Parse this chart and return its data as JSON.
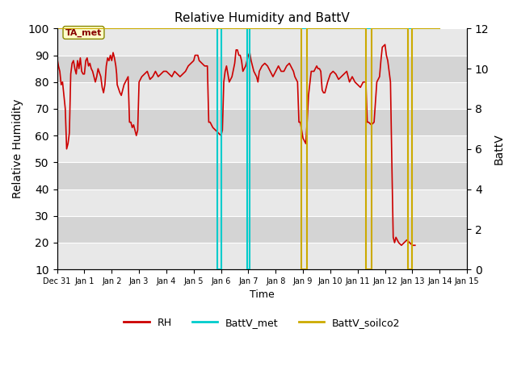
{
  "title": "Relative Humidity and BattV",
  "xlabel": "Time",
  "ylabel_left": "Relative Humidity",
  "ylabel_right": "BattV",
  "annotation_label": "TA_met",
  "ylim_left": [
    10,
    100
  ],
  "ylim_right": [
    0,
    12
  ],
  "background_color": "#ffffff",
  "rh_color": "#cc0000",
  "battv_met_color": "#00cccc",
  "battv_soilco2_color": "#ccaa00",
  "x_tick_labels": [
    "Dec 31",
    "Jan 1",
    "Jan 2",
    "Jan 3",
    "Jan 4",
    "Jan 5",
    "Jan 6",
    "Jan 7",
    "Jan 8",
    "Jan 9",
    "Jan 10",
    "Jan 11",
    "Jan 12",
    "Jan 13",
    "Jan 14",
    "Jan 15"
  ],
  "num_days": 16,
  "gray_bands": [
    {
      "ymin": 10,
      "ymax": 20,
      "color": "#e8e8e8"
    },
    {
      "ymin": 20,
      "ymax": 30,
      "color": "#d4d4d4"
    },
    {
      "ymin": 30,
      "ymax": 40,
      "color": "#e8e8e8"
    },
    {
      "ymin": 40,
      "ymax": 50,
      "color": "#d4d4d4"
    },
    {
      "ymin": 50,
      "ymax": 60,
      "color": "#e8e8e8"
    },
    {
      "ymin": 60,
      "ymax": 70,
      "color": "#d4d4d4"
    },
    {
      "ymin": 70,
      "ymax": 80,
      "color": "#e8e8e8"
    },
    {
      "ymin": 80,
      "ymax": 90,
      "color": "#d4d4d4"
    },
    {
      "ymin": 90,
      "ymax": 100,
      "color": "#e8e8e8"
    }
  ],
  "rh_data": [
    [
      0.0,
      89
    ],
    [
      0.05,
      86
    ],
    [
      0.1,
      84
    ],
    [
      0.15,
      79
    ],
    [
      0.2,
      80
    ],
    [
      0.25,
      75
    ],
    [
      0.3,
      70
    ],
    [
      0.35,
      55
    ],
    [
      0.4,
      57
    ],
    [
      0.45,
      61
    ],
    [
      0.5,
      83
    ],
    [
      0.55,
      87
    ],
    [
      0.6,
      88
    ],
    [
      0.65,
      85
    ],
    [
      0.7,
      83
    ],
    [
      0.75,
      88
    ],
    [
      0.8,
      85
    ],
    [
      0.85,
      89
    ],
    [
      0.9,
      84
    ],
    [
      0.95,
      83
    ],
    [
      1.0,
      83
    ],
    [
      1.05,
      88
    ],
    [
      1.1,
      89
    ],
    [
      1.15,
      86
    ],
    [
      1.2,
      87
    ],
    [
      1.25,
      85
    ],
    [
      1.3,
      84
    ],
    [
      1.35,
      82
    ],
    [
      1.4,
      80
    ],
    [
      1.45,
      82
    ],
    [
      1.5,
      85
    ],
    [
      1.6,
      82
    ],
    [
      1.65,
      78
    ],
    [
      1.7,
      76
    ],
    [
      1.75,
      79
    ],
    [
      1.8,
      86
    ],
    [
      1.85,
      89
    ],
    [
      1.9,
      88
    ],
    [
      1.95,
      90
    ],
    [
      2.0,
      88
    ],
    [
      2.05,
      91
    ],
    [
      2.1,
      89
    ],
    [
      2.15,
      86
    ],
    [
      2.18,
      83
    ],
    [
      2.2,
      79
    ],
    [
      2.3,
      76
    ],
    [
      2.35,
      75
    ],
    [
      2.4,
      77
    ],
    [
      2.45,
      79
    ],
    [
      2.5,
      80
    ],
    [
      2.6,
      82
    ],
    [
      2.65,
      65
    ],
    [
      2.7,
      65
    ],
    [
      2.75,
      63
    ],
    [
      2.8,
      64
    ],
    [
      2.9,
      60
    ],
    [
      2.95,
      62
    ],
    [
      3.0,
      80
    ],
    [
      3.1,
      82
    ],
    [
      3.2,
      83
    ],
    [
      3.3,
      84
    ],
    [
      3.4,
      81
    ],
    [
      3.5,
      82
    ],
    [
      3.6,
      84
    ],
    [
      3.7,
      82
    ],
    [
      3.8,
      83
    ],
    [
      3.9,
      84
    ],
    [
      4.0,
      84
    ],
    [
      4.1,
      83
    ],
    [
      4.2,
      82
    ],
    [
      4.3,
      84
    ],
    [
      4.4,
      83
    ],
    [
      4.5,
      82
    ],
    [
      4.6,
      83
    ],
    [
      4.7,
      84
    ],
    [
      4.8,
      86
    ],
    [
      4.9,
      87
    ],
    [
      5.0,
      88
    ],
    [
      5.05,
      90
    ],
    [
      5.1,
      90
    ],
    [
      5.15,
      90
    ],
    [
      5.2,
      88
    ],
    [
      5.3,
      87
    ],
    [
      5.4,
      86
    ],
    [
      5.5,
      86
    ],
    [
      5.55,
      65
    ],
    [
      5.6,
      65
    ],
    [
      5.7,
      63
    ],
    [
      5.8,
      62
    ],
    [
      5.9,
      61
    ],
    [
      6.0,
      60
    ],
    [
      6.05,
      62
    ],
    [
      6.1,
      80
    ],
    [
      6.15,
      84
    ],
    [
      6.2,
      86
    ],
    [
      6.3,
      80
    ],
    [
      6.4,
      82
    ],
    [
      6.5,
      87
    ],
    [
      6.55,
      92
    ],
    [
      6.6,
      92
    ],
    [
      6.65,
      90
    ],
    [
      6.7,
      90
    ],
    [
      6.75,
      88
    ],
    [
      6.8,
      84
    ],
    [
      6.9,
      86
    ],
    [
      7.0,
      90
    ],
    [
      7.05,
      91
    ],
    [
      7.1,
      88
    ],
    [
      7.15,
      86
    ],
    [
      7.2,
      84
    ],
    [
      7.3,
      82
    ],
    [
      7.35,
      80
    ],
    [
      7.4,
      84
    ],
    [
      7.5,
      86
    ],
    [
      7.6,
      87
    ],
    [
      7.7,
      86
    ],
    [
      7.8,
      84
    ],
    [
      7.9,
      82
    ],
    [
      8.0,
      84
    ],
    [
      8.1,
      86
    ],
    [
      8.2,
      84
    ],
    [
      8.3,
      84
    ],
    [
      8.4,
      86
    ],
    [
      8.5,
      87
    ],
    [
      8.6,
      85
    ],
    [
      8.65,
      84
    ],
    [
      8.7,
      82
    ],
    [
      8.8,
      80
    ],
    [
      8.85,
      65
    ],
    [
      8.9,
      65
    ],
    [
      9.0,
      59
    ],
    [
      9.05,
      58
    ],
    [
      9.1,
      57
    ],
    [
      9.15,
      65
    ],
    [
      9.2,
      75
    ],
    [
      9.3,
      84
    ],
    [
      9.4,
      84
    ],
    [
      9.5,
      86
    ],
    [
      9.55,
      85
    ],
    [
      9.6,
      85
    ],
    [
      9.65,
      84
    ],
    [
      9.7,
      77
    ],
    [
      9.75,
      76
    ],
    [
      9.8,
      76
    ],
    [
      9.85,
      78
    ],
    [
      9.9,
      80
    ],
    [
      10.0,
      83
    ],
    [
      10.1,
      84
    ],
    [
      10.2,
      83
    ],
    [
      10.3,
      81
    ],
    [
      10.4,
      82
    ],
    [
      10.5,
      83
    ],
    [
      10.6,
      84
    ],
    [
      10.7,
      80
    ],
    [
      10.8,
      82
    ],
    [
      10.9,
      80
    ],
    [
      11.0,
      79
    ],
    [
      11.1,
      78
    ],
    [
      11.2,
      80
    ],
    [
      11.3,
      80
    ],
    [
      11.35,
      65
    ],
    [
      11.4,
      65
    ],
    [
      11.5,
      64
    ],
    [
      11.6,
      65
    ],
    [
      11.7,
      80
    ],
    [
      11.8,
      82
    ],
    [
      11.85,
      88
    ],
    [
      11.9,
      93
    ],
    [
      12.0,
      94
    ],
    [
      12.05,
      90
    ],
    [
      12.1,
      88
    ],
    [
      12.2,
      80
    ],
    [
      12.25,
      50
    ],
    [
      12.3,
      22
    ],
    [
      12.35,
      20
    ],
    [
      12.4,
      22
    ],
    [
      12.5,
      20
    ],
    [
      12.6,
      19
    ],
    [
      12.7,
      20
    ],
    [
      12.8,
      21
    ],
    [
      12.9,
      20
    ],
    [
      13.0,
      19
    ],
    [
      13.1,
      19
    ]
  ],
  "battv_met_data": [
    [
      0.0,
      12
    ],
    [
      5.85,
      12
    ],
    [
      5.85,
      0
    ],
    [
      6.0,
      0
    ],
    [
      6.0,
      12
    ],
    [
      6.95,
      12
    ],
    [
      6.95,
      0
    ],
    [
      7.05,
      0
    ],
    [
      7.05,
      12
    ],
    [
      14.0,
      12
    ]
  ],
  "battv_soilco2_data": [
    [
      0.0,
      12
    ],
    [
      8.95,
      12
    ],
    [
      8.95,
      0
    ],
    [
      9.15,
      0
    ],
    [
      9.15,
      12
    ],
    [
      11.3,
      12
    ],
    [
      11.3,
      0
    ],
    [
      11.5,
      0
    ],
    [
      11.5,
      12
    ],
    [
      12.85,
      12
    ],
    [
      12.85,
      0
    ],
    [
      13.0,
      0
    ],
    [
      13.0,
      12
    ],
    [
      14.0,
      12
    ]
  ]
}
